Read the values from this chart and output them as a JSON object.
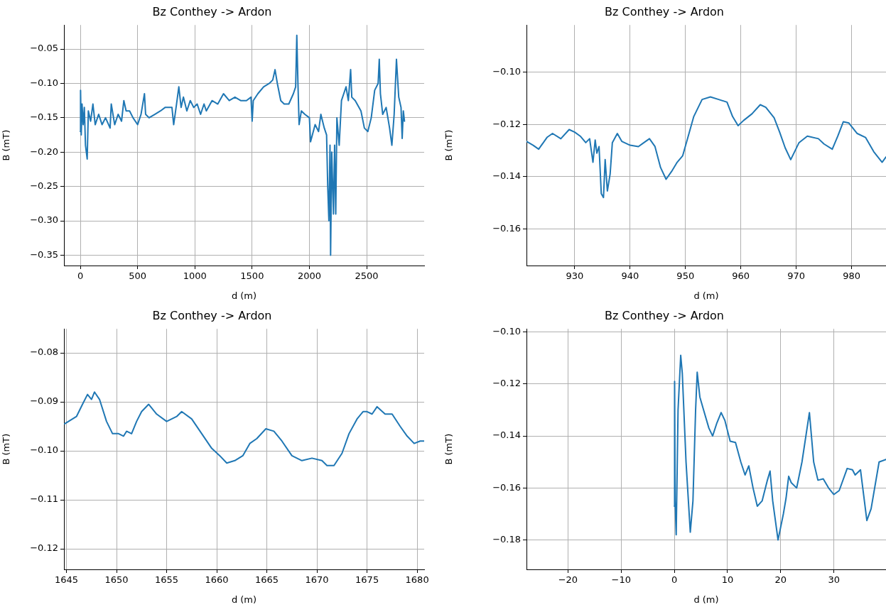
{
  "chart_data": [
    {
      "type": "line",
      "title": "Bz Conthey -> Ardon",
      "xlabel": "d (m)",
      "ylabel": "B (mT)",
      "grid": true,
      "xlim": [
        -143,
        3002
      ],
      "ylim": [
        -0.365,
        -0.015
      ],
      "xticks": [
        0,
        500,
        1000,
        1500,
        2000,
        2500
      ],
      "yticks": [
        {
          "value": -0.35,
          "label": "−0.35"
        },
        {
          "value": -0.3,
          "label": "−0.30"
        },
        {
          "value": -0.25,
          "label": "−0.25"
        },
        {
          "value": -0.2,
          "label": "−0.20"
        },
        {
          "value": -0.15,
          "label": "−0.15"
        },
        {
          "value": -0.1,
          "label": "−0.10"
        },
        {
          "value": -0.05,
          "label": "−0.05"
        }
      ],
      "series": [
        {
          "color": "#1f77b4",
          "x": [
            0,
            2,
            8,
            15,
            25,
            35,
            45,
            60,
            70,
            90,
            110,
            130,
            160,
            190,
            220,
            260,
            270,
            300,
            330,
            360,
            380,
            400,
            430,
            460,
            500,
            530,
            560,
            570,
            600,
            650,
            700,
            740,
            800,
            815,
            840,
            860,
            880,
            900,
            930,
            960,
            990,
            1020,
            1050,
            1080,
            1100,
            1150,
            1200,
            1250,
            1300,
            1350,
            1400,
            1450,
            1490,
            1500,
            1510,
            1550,
            1600,
            1650,
            1680,
            1700,
            1720,
            1750,
            1780,
            1820,
            1860,
            1880,
            1890,
            1900,
            1910,
            1930,
            1960,
            2000,
            2010,
            2050,
            2080,
            2100,
            2130,
            2150,
            2160,
            2170,
            2180,
            2185,
            2195,
            2210,
            2220,
            2230,
            2240,
            2260,
            2280,
            2300,
            2320,
            2340,
            2360,
            2370,
            2400,
            2450,
            2480,
            2510,
            2540,
            2570,
            2600,
            2610,
            2620,
            2640,
            2670,
            2700,
            2720,
            2740,
            2760,
            2780,
            2800,
            2810,
            2820,
            2830
          ],
          "values": [
            -0.17,
            -0.11,
            -0.175,
            -0.13,
            -0.16,
            -0.135,
            -0.19,
            -0.21,
            -0.14,
            -0.155,
            -0.13,
            -0.16,
            -0.145,
            -0.16,
            -0.15,
            -0.165,
            -0.13,
            -0.16,
            -0.145,
            -0.155,
            -0.125,
            -0.14,
            -0.14,
            -0.15,
            -0.16,
            -0.145,
            -0.115,
            -0.145,
            -0.15,
            -0.145,
            -0.14,
            -0.135,
            -0.135,
            -0.16,
            -0.13,
            -0.105,
            -0.135,
            -0.12,
            -0.14,
            -0.125,
            -0.135,
            -0.13,
            -0.145,
            -0.13,
            -0.14,
            -0.125,
            -0.13,
            -0.115,
            -0.125,
            -0.12,
            -0.125,
            -0.125,
            -0.12,
            -0.155,
            -0.125,
            -0.115,
            -0.105,
            -0.1,
            -0.095,
            -0.08,
            -0.1,
            -0.125,
            -0.13,
            -0.13,
            -0.115,
            -0.105,
            -0.03,
            -0.1,
            -0.16,
            -0.14,
            -0.145,
            -0.15,
            -0.185,
            -0.16,
            -0.17,
            -0.145,
            -0.165,
            -0.175,
            -0.25,
            -0.3,
            -0.19,
            -0.35,
            -0.2,
            -0.29,
            -0.19,
            -0.29,
            -0.15,
            -0.19,
            -0.125,
            -0.115,
            -0.105,
            -0.125,
            -0.08,
            -0.12,
            -0.125,
            -0.14,
            -0.165,
            -0.17,
            -0.15,
            -0.11,
            -0.1,
            -0.065,
            -0.115,
            -0.145,
            -0.135,
            -0.165,
            -0.19,
            -0.145,
            -0.065,
            -0.12,
            -0.135,
            -0.18,
            -0.14,
            -0.155
          ]
        }
      ]
    },
    {
      "type": "line",
      "title": "Bz Conthey -> Ardon",
      "xlabel": "d (m)",
      "ylabel": "B (mT)",
      "grid": true,
      "xlim": [
        921.3,
        986.2
      ],
      "ylim": [
        -0.174,
        -0.082
      ],
      "xticks": [
        930,
        940,
        950,
        960,
        970,
        980
      ],
      "yticks": [
        {
          "value": -0.16,
          "label": "−0.16"
        },
        {
          "value": -0.14,
          "label": "−0.14"
        },
        {
          "value": -0.12,
          "label": "−0.12"
        },
        {
          "value": -0.1,
          "label": "−0.10"
        }
      ],
      "series": [
        {
          "color": "#1f77b4",
          "x": [
            921.3,
            922.5,
            923.5,
            925,
            926,
            927.5,
            929,
            930,
            931,
            932,
            932.7,
            933.3,
            933.7,
            934,
            934.4,
            934.8,
            935.2,
            935.5,
            935.9,
            936.4,
            936.8,
            937.7,
            938.5,
            940,
            941.5,
            942.5,
            943.5,
            944.5,
            945.5,
            946.5,
            947.5,
            948.5,
            949.5,
            950.5,
            951.5,
            953,
            954.5,
            956,
            957.5,
            958.5,
            959.5,
            960.5,
            962,
            963.5,
            964.5,
            966,
            967,
            968,
            969,
            970.5,
            972,
            974,
            975,
            976.5,
            977.5,
            978.5,
            979.5,
            981,
            982.5,
            984,
            985.5,
            986.2
          ],
          "values": [
            -0.1265,
            -0.128,
            -0.1295,
            -0.125,
            -0.1235,
            -0.1255,
            -0.122,
            -0.123,
            -0.1245,
            -0.127,
            -0.1255,
            -0.1345,
            -0.126,
            -0.131,
            -0.1285,
            -0.1465,
            -0.148,
            -0.1335,
            -0.1455,
            -0.139,
            -0.127,
            -0.1235,
            -0.1265,
            -0.128,
            -0.1285,
            -0.127,
            -0.1255,
            -0.1285,
            -0.1365,
            -0.141,
            -0.138,
            -0.1345,
            -0.132,
            -0.1245,
            -0.117,
            -0.1105,
            -0.1095,
            -0.1105,
            -0.1115,
            -0.117,
            -0.1205,
            -0.1185,
            -0.116,
            -0.1125,
            -0.1135,
            -0.1175,
            -0.123,
            -0.129,
            -0.1335,
            -0.127,
            -0.1245,
            -0.1255,
            -0.1275,
            -0.1295,
            -0.1245,
            -0.119,
            -0.1195,
            -0.1235,
            -0.125,
            -0.1305,
            -0.1345,
            -0.1325
          ]
        }
      ]
    },
    {
      "type": "line",
      "title": "Bz Conthey -> Ardon",
      "xlabel": "d (m)",
      "ylabel": "B (mT)",
      "grid": true,
      "xlim": [
        1644.75,
        1680.7
      ],
      "ylim": [
        -0.1242,
        -0.0751
      ],
      "xticks": [
        1645,
        1650,
        1655,
        1660,
        1665,
        1670,
        1675,
        1680
      ],
      "yticks": [
        {
          "value": -0.12,
          "label": "−0.12"
        },
        {
          "value": -0.11,
          "label": "−0.11"
        },
        {
          "value": -0.1,
          "label": "−0.10"
        },
        {
          "value": -0.09,
          "label": "−0.09"
        },
        {
          "value": -0.08,
          "label": "−0.08"
        }
      ],
      "series": [
        {
          "color": "#1f77b4",
          "x": [
            1644.8,
            1646,
            1646.6,
            1647.1,
            1647.5,
            1647.8,
            1648.3,
            1649,
            1649.6,
            1650.2,
            1650.7,
            1651,
            1651.5,
            1652,
            1652.5,
            1653.2,
            1654,
            1655,
            1656,
            1656.5,
            1657.5,
            1658.5,
            1659.5,
            1660.3,
            1661,
            1661.8,
            1662.6,
            1663.3,
            1664,
            1664.9,
            1665.7,
            1666.5,
            1667.5,
            1668.5,
            1669.5,
            1670.5,
            1671,
            1671.7,
            1672.5,
            1673.2,
            1674,
            1674.6,
            1675,
            1675.5,
            1676,
            1676.8,
            1677.5,
            1678.3,
            1679,
            1679.7,
            1680.3,
            1680.7
          ],
          "values": [
            -0.0945,
            -0.093,
            -0.0905,
            -0.0885,
            -0.0895,
            -0.088,
            -0.0895,
            -0.094,
            -0.0965,
            -0.0965,
            -0.097,
            -0.096,
            -0.0965,
            -0.094,
            -0.092,
            -0.0905,
            -0.0925,
            -0.094,
            -0.093,
            -0.092,
            -0.0935,
            -0.0965,
            -0.0995,
            -0.101,
            -0.1025,
            -0.102,
            -0.101,
            -0.0985,
            -0.0975,
            -0.0955,
            -0.096,
            -0.098,
            -0.101,
            -0.102,
            -0.1015,
            -0.102,
            -0.103,
            -0.103,
            -0.1005,
            -0.0965,
            -0.0935,
            -0.092,
            -0.092,
            -0.0925,
            -0.091,
            -0.0925,
            -0.0925,
            -0.095,
            -0.097,
            -0.0985,
            -0.098,
            -0.098
          ]
        }
      ]
    },
    {
      "type": "line",
      "title": "Bz Conthey -> Ardon",
      "xlabel": "d (m)",
      "ylabel": "B (mT)",
      "grid": true,
      "xlim": [
        -27.8,
        39.8
      ],
      "ylim": [
        -0.1913,
        -0.0988
      ],
      "xticks": [
        {
          "value": -20,
          "label": "−20"
        },
        {
          "value": -10,
          "label": "−10"
        },
        0,
        10,
        20,
        30
      ],
      "yticks": [
        {
          "value": -0.18,
          "label": "−0.18"
        },
        {
          "value": -0.16,
          "label": "−0.16"
        },
        {
          "value": -0.14,
          "label": "−0.14"
        },
        {
          "value": -0.12,
          "label": "−0.12"
        },
        {
          "value": -0.1,
          "label": "−0.10"
        }
      ],
      "series": [
        {
          "color": "#1f77b4",
          "x": [
            0,
            0.05,
            0.15,
            0.35,
            0.7,
            1.2,
            1.5,
            2.2,
            3,
            3.5,
            4,
            4.3,
            4.8,
            5.5,
            6.5,
            7.2,
            8,
            8.8,
            9.5,
            10.5,
            11.5,
            12.5,
            13.3,
            14,
            14.8,
            15.6,
            16.5,
            17.5,
            18,
            18.5,
            19.5,
            20.5,
            21,
            21.5,
            22,
            23,
            24,
            25.4,
            26.2,
            27,
            28,
            29,
            30,
            31,
            32.5,
            33.5,
            34,
            35,
            36.2,
            37,
            38.5,
            39.8
          ],
          "values": [
            -0.167,
            -0.119,
            -0.165,
            -0.178,
            -0.13,
            -0.109,
            -0.116,
            -0.15,
            -0.177,
            -0.165,
            -0.13,
            -0.1155,
            -0.125,
            -0.13,
            -0.137,
            -0.14,
            -0.135,
            -0.131,
            -0.134,
            -0.142,
            -0.1425,
            -0.15,
            -0.155,
            -0.1515,
            -0.16,
            -0.167,
            -0.165,
            -0.157,
            -0.1535,
            -0.165,
            -0.18,
            -0.17,
            -0.164,
            -0.1555,
            -0.158,
            -0.16,
            -0.15,
            -0.131,
            -0.15,
            -0.157,
            -0.1565,
            -0.16,
            -0.1625,
            -0.161,
            -0.1525,
            -0.153,
            -0.155,
            -0.153,
            -0.1725,
            -0.168,
            -0.15,
            -0.149
          ]
        }
      ]
    }
  ]
}
